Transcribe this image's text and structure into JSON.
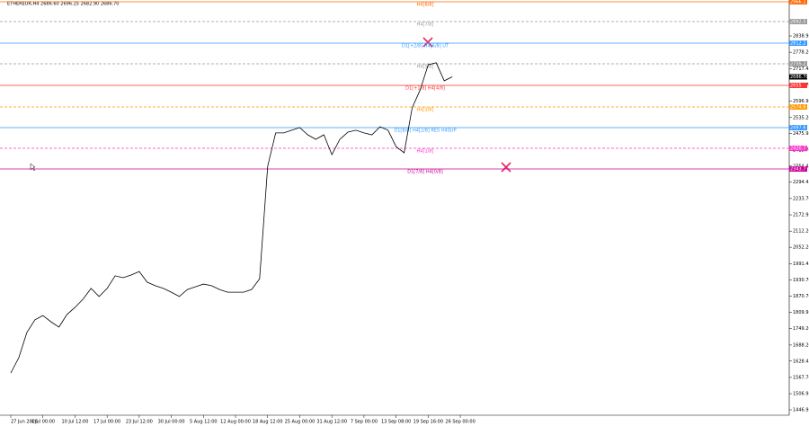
{
  "chart_data": {
    "type": "line",
    "title": "ETHEREUR,H4 2686.60 2696.25 2682.90 2686.70",
    "last_price": "2686.70",
    "categories": [
      "27 Jun 2026",
      null,
      null,
      null,
      "4 Jul 00:00",
      null,
      null,
      null,
      "10 Jul 12:00",
      null,
      null,
      null,
      "17 Jul 00:00",
      null,
      null,
      null,
      "23 Jul 12:00",
      null,
      null,
      null,
      "30 Jul 00:00",
      null,
      null,
      null,
      "5 Aug 12:00",
      null,
      null,
      null,
      "12 Aug 00:00",
      null,
      null,
      null,
      "18 Aug 12:00",
      null,
      null,
      null,
      "25 Aug 00:00",
      null,
      null,
      null,
      "31 Aug 12:00",
      null,
      null,
      null,
      "7 Sep 00:00",
      null,
      null,
      null,
      "13 Sep 08:00",
      null,
      null,
      null,
      "19 Sep 16:00",
      null,
      null,
      null,
      "26 Sep 00:00"
    ],
    "series": [
      {
        "color": "#000000",
        "values": [
          1584,
          1641,
          1735,
          1782,
          1798,
          1775,
          1755,
          1802,
          1828,
          1859,
          1899,
          1869,
          1899,
          1946,
          1939,
          1949,
          1962,
          1922,
          1909,
          1899,
          1885,
          1869,
          1895,
          1905,
          1915,
          1909,
          1895,
          1885,
          1885,
          1885,
          1895,
          1935,
          2354,
          2478,
          2478,
          2488,
          2498,
          2471,
          2454,
          2471,
          2397,
          2454,
          2481,
          2488,
          2478,
          2471,
          2501,
          2488,
          2427,
          2404,
          2571,
          2638,
          2732,
          2739,
          2672,
          2686.7,
          null
        ]
      }
    ],
    "ylim": [
      1426.9,
      2966.1
    ],
    "yticks": [
      {
        "value": 1446.95,
        "label": "1446.95"
      },
      {
        "value": 1506.95,
        "label": "1506.95"
      },
      {
        "value": 1567.7,
        "label": "1567.70"
      },
      1628.45,
      {
        "value": 1688.2,
        "label": "1688.20"
      },
      {
        "value": 1749.2,
        "label": "1749.20"
      },
      1809.95,
      {
        "value": 1870.7,
        "label": "1870.70"
      },
      {
        "value": 1930.7,
        "label": "1930.70"
      },
      1991.45,
      {
        "value": 2052.2,
        "label": "2052.20"
      },
      {
        "value": 2112.2,
        "label": "2112.20"
      },
      2172.95,
      {
        "value": 2233.7,
        "label": "2233.70"
      },
      2294.45,
      2354.45,
      {
        "value": 2413.7,
        "label": "2413.70"
      },
      2475.95,
      {
        "value": 2535.2,
        "label": "2535.20"
      },
      2596.95,
      {
        "value": 2656.7,
        "label": "2656.70"
      },
      2717.45,
      {
        "value": 2778.2,
        "label": "2778.20"
      },
      2838.95
    ],
    "levels": [
      {
        "label": "H4[8/8]",
        "value": 2966.1,
        "color": "#ff6600",
        "dash": false
      },
      {
        "label": "H4[7/8]",
        "value": 2892.5,
        "color": "#999999",
        "dash": true
      },
      {
        "label": "D1[+2/8] H4[6/8] UT",
        "value": 2812.2,
        "color": "#3399ff",
        "dash": false
      },
      {
        "label": "H4[5/8]",
        "value": 2735.2,
        "color": "#999999",
        "dash": true
      },
      {
        "label": "D1[+1/8] H4[4/8]",
        "value": 2655,
        "color": "#ff3333",
        "dash": false
      },
      {
        "label": "H4[3/8]",
        "value": 2574.6,
        "color": "#ff9900",
        "dash": true
      },
      {
        "label": "D1[8/8] H4[2/8] RES H4SUP",
        "value": 2497.6,
        "color": "#3399ff",
        "dash": false
      },
      {
        "label": "H4[1/8]",
        "value": 2420.7,
        "color": "#ff33cc",
        "dash": true
      },
      {
        "label": "D1[7/8] H4[0/8]",
        "value": 2343.7,
        "color": "#cc0099",
        "dash": false
      }
    ]
  }
}
